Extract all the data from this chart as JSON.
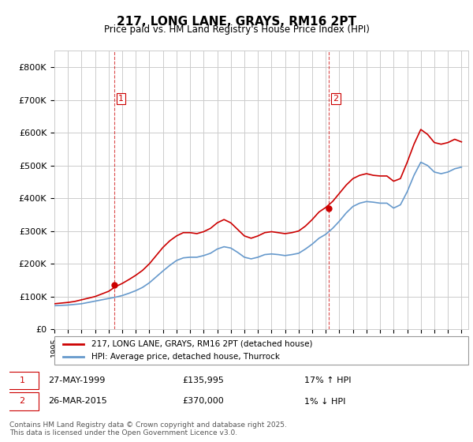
{
  "title": "217, LONG LANE, GRAYS, RM16 2PT",
  "subtitle": "Price paid vs. HM Land Registry's House Price Index (HPI)",
  "ylabel_ticks": [
    "£0",
    "£100K",
    "£200K",
    "£300K",
    "£400K",
    "£500K",
    "£600K",
    "£700K",
    "£800K"
  ],
  "ytick_values": [
    0,
    100000,
    200000,
    300000,
    400000,
    500000,
    600000,
    700000,
    800000
  ],
  "ylim": [
    0,
    850000
  ],
  "xlim_start": 1995.0,
  "xlim_end": 2025.5,
  "red_line_color": "#cc0000",
  "blue_line_color": "#6699cc",
  "vline_color": "#cc0000",
  "grid_color": "#cccccc",
  "background_color": "#ffffff",
  "purchase1_x": 1999.4,
  "purchase1_price": 135995,
  "purchase1_label": "1",
  "purchase2_x": 2015.23,
  "purchase2_price": 370000,
  "purchase2_label": "2",
  "legend_line1": "217, LONG LANE, GRAYS, RM16 2PT (detached house)",
  "legend_line2": "HPI: Average price, detached house, Thurrock",
  "note1_label": "1",
  "note1_date": "27-MAY-1999",
  "note1_price": "£135,995",
  "note1_hpi": "17% ↑ HPI",
  "note2_label": "2",
  "note2_date": "26-MAR-2015",
  "note2_price": "£370,000",
  "note2_hpi": "1% ↓ HPI",
  "footnote": "Contains HM Land Registry data © Crown copyright and database right 2025.\nThis data is licensed under the Open Government Licence v3.0.",
  "hpi_x": [
    1995.0,
    1995.5,
    1996.0,
    1996.5,
    1997.0,
    1997.5,
    1998.0,
    1998.5,
    1999.0,
    1999.5,
    2000.0,
    2000.5,
    2001.0,
    2001.5,
    2002.0,
    2002.5,
    2003.0,
    2003.5,
    2004.0,
    2004.5,
    2005.0,
    2005.5,
    2006.0,
    2006.5,
    2007.0,
    2007.5,
    2008.0,
    2008.5,
    2009.0,
    2009.5,
    2010.0,
    2010.5,
    2011.0,
    2011.5,
    2012.0,
    2012.5,
    2013.0,
    2013.5,
    2014.0,
    2014.5,
    2015.0,
    2015.5,
    2016.0,
    2016.5,
    2017.0,
    2017.5,
    2018.0,
    2018.5,
    2019.0,
    2019.5,
    2020.0,
    2020.5,
    2021.0,
    2021.5,
    2022.0,
    2022.5,
    2023.0,
    2023.5,
    2024.0,
    2024.5,
    2025.0
  ],
  "hpi_y": [
    72000,
    73000,
    74000,
    76000,
    78000,
    82000,
    86000,
    90000,
    94000,
    98000,
    103000,
    110000,
    118000,
    128000,
    142000,
    160000,
    178000,
    195000,
    210000,
    218000,
    220000,
    220000,
    225000,
    232000,
    245000,
    252000,
    248000,
    235000,
    220000,
    215000,
    220000,
    228000,
    230000,
    228000,
    225000,
    228000,
    232000,
    245000,
    260000,
    278000,
    290000,
    308000,
    330000,
    355000,
    375000,
    385000,
    390000,
    388000,
    385000,
    385000,
    370000,
    380000,
    420000,
    470000,
    510000,
    500000,
    480000,
    475000,
    480000,
    490000,
    495000
  ],
  "price_x": [
    1995.0,
    1995.5,
    1996.0,
    1996.5,
    1997.0,
    1997.5,
    1998.0,
    1998.5,
    1999.0,
    1999.5,
    2000.0,
    2000.5,
    2001.0,
    2001.5,
    2002.0,
    2002.5,
    2003.0,
    2003.5,
    2004.0,
    2004.5,
    2005.0,
    2005.5,
    2006.0,
    2006.5,
    2007.0,
    2007.5,
    2008.0,
    2008.5,
    2009.0,
    2009.5,
    2010.0,
    2010.5,
    2011.0,
    2011.5,
    2012.0,
    2012.5,
    2013.0,
    2013.5,
    2014.0,
    2014.5,
    2015.0,
    2015.5,
    2016.0,
    2016.5,
    2017.0,
    2017.5,
    2018.0,
    2018.5,
    2019.0,
    2019.5,
    2020.0,
    2020.5,
    2021.0,
    2021.5,
    2022.0,
    2022.5,
    2023.0,
    2023.5,
    2024.0,
    2024.5,
    2025.0
  ],
  "price_y": [
    78000,
    80000,
    82000,
    85000,
    90000,
    95000,
    100000,
    108000,
    116000,
    130000,
    140000,
    152000,
    165000,
    180000,
    200000,
    225000,
    250000,
    270000,
    285000,
    295000,
    295000,
    292000,
    298000,
    308000,
    325000,
    335000,
    325000,
    305000,
    285000,
    278000,
    285000,
    295000,
    298000,
    295000,
    292000,
    295000,
    300000,
    315000,
    335000,
    358000,
    372000,
    390000,
    415000,
    440000,
    460000,
    470000,
    475000,
    470000,
    468000,
    468000,
    452000,
    460000,
    510000,
    565000,
    610000,
    595000,
    570000,
    565000,
    570000,
    580000,
    572000
  ]
}
